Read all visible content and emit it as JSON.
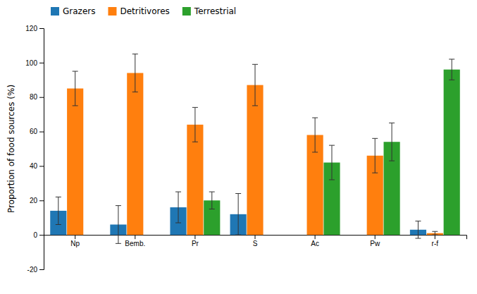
{
  "chart_data": {
    "type": "bar",
    "categories": [
      "Np",
      "Bemb.",
      "Pr",
      "S",
      "Ac",
      "Pw",
      "r-f"
    ],
    "series": [
      {
        "name": "Grazers",
        "values": [
          14,
          6,
          16,
          12,
          0,
          0,
          3
        ],
        "errors": [
          8,
          11,
          9,
          12,
          0,
          0,
          5
        ]
      },
      {
        "name": "Detritivores",
        "values": [
          85,
          94,
          64,
          87,
          58,
          46,
          1
        ],
        "errors": [
          10,
          11,
          10,
          12,
          10,
          10,
          1
        ]
      },
      {
        "name": "Terrestrial",
        "values": [
          0,
          0,
          20,
          0,
          42,
          54,
          96
        ],
        "errors": [
          0,
          0,
          5,
          0,
          10,
          11,
          6
        ]
      }
    ],
    "ylabel": "Proportion of food sources (%)",
    "ylim": [
      -20,
      120
    ],
    "yticks": [
      -20,
      0,
      20,
      40,
      60,
      80,
      100,
      120
    ],
    "grid": false,
    "legend": "upper left"
  }
}
